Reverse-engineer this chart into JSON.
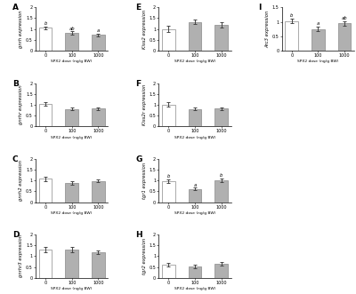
{
  "panels": [
    {
      "label": "A",
      "ylabel": "gnrh expression",
      "xlabels": [
        "0",
        "100",
        "1000"
      ],
      "values": [
        1.05,
        0.82,
        0.72
      ],
      "errors": [
        0.07,
        0.07,
        0.06
      ],
      "ylim": [
        0,
        2
      ],
      "yticks": [
        0,
        0.5,
        1.0,
        1.5,
        2.0
      ],
      "ytick_labels": [
        "0",
        "0.5",
        "1",
        "1.5",
        "2"
      ],
      "sig": [
        "b",
        "ab",
        "a"
      ],
      "colors": [
        "white",
        "#b0b0b0",
        "#b0b0b0"
      ]
    },
    {
      "label": "B",
      "ylabel": "gnrhr expression",
      "xlabels": [
        "0",
        "100",
        "1000"
      ],
      "values": [
        1.03,
        0.8,
        0.82
      ],
      "errors": [
        0.09,
        0.07,
        0.07
      ],
      "ylim": [
        0,
        2
      ],
      "yticks": [
        0,
        0.5,
        1.0,
        1.5,
        2.0
      ],
      "ytick_labels": [
        "0",
        "0.5",
        "1",
        "1.5",
        "2"
      ],
      "sig": [
        "",
        "",
        ""
      ],
      "colors": [
        "white",
        "#b0b0b0",
        "#b0b0b0"
      ]
    },
    {
      "label": "C",
      "ylabel": "gnrh2 expression",
      "xlabels": [
        "0",
        "100",
        "1000"
      ],
      "values": [
        1.07,
        0.88,
        0.98
      ],
      "errors": [
        0.1,
        0.07,
        0.07
      ],
      "ylim": [
        0,
        2
      ],
      "yticks": [
        0,
        0.5,
        1.0,
        1.5,
        2.0
      ],
      "ytick_labels": [
        "0",
        "0.5",
        "1",
        "1.5",
        "2"
      ],
      "sig": [
        "",
        "",
        ""
      ],
      "colors": [
        "white",
        "#b0b0b0",
        "#b0b0b0"
      ]
    },
    {
      "label": "D",
      "ylabel": "gnrhr3 expression",
      "xlabels": [
        "0",
        "100",
        "1000"
      ],
      "values": [
        1.3,
        1.32,
        1.18
      ],
      "errors": [
        0.13,
        0.12,
        0.1
      ],
      "ylim": [
        0,
        2
      ],
      "yticks": [
        0,
        0.5,
        1.0,
        1.5,
        2.0
      ],
      "ytick_labels": [
        "0",
        "0.5",
        "1",
        "1.5",
        "2"
      ],
      "sig": [
        "",
        "",
        ""
      ],
      "colors": [
        "white",
        "#b0b0b0",
        "#b0b0b0"
      ]
    },
    {
      "label": "E",
      "ylabel": "Kiss2 expression",
      "xlabels": [
        "0",
        "100",
        "1000"
      ],
      "values": [
        1.0,
        1.32,
        1.18
      ],
      "errors": [
        0.14,
        0.1,
        0.12
      ],
      "ylim": [
        0,
        2
      ],
      "yticks": [
        0,
        0.5,
        1.0,
        1.5,
        2.0
      ],
      "ytick_labels": [
        "0",
        "0.5",
        "1",
        "1.5",
        "2"
      ],
      "sig": [
        "",
        "",
        ""
      ],
      "colors": [
        "white",
        "#b0b0b0",
        "#b0b0b0"
      ]
    },
    {
      "label": "F",
      "ylabel": "Kiss2r expression",
      "xlabels": [
        "0",
        "100",
        "1000"
      ],
      "values": [
        1.0,
        0.8,
        0.82
      ],
      "errors": [
        0.1,
        0.07,
        0.07
      ],
      "ylim": [
        0,
        2
      ],
      "yticks": [
        0,
        0.5,
        1.0,
        1.5,
        2.0
      ],
      "ytick_labels": [
        "0",
        "0.5",
        "1",
        "1.5",
        "2"
      ],
      "sig": [
        "",
        "",
        ""
      ],
      "colors": [
        "white",
        "#b0b0b0",
        "#b0b0b0"
      ]
    },
    {
      "label": "G",
      "ylabel": "tgr1 expression",
      "xlabels": [
        "0",
        "100",
        "1000"
      ],
      "values": [
        0.98,
        0.6,
        1.02
      ],
      "errors": [
        0.08,
        0.06,
        0.08
      ],
      "ylim": [
        0,
        2
      ],
      "yticks": [
        0,
        0.5,
        1.0,
        1.5,
        2.0
      ],
      "ytick_labels": [
        "0",
        "0.5",
        "1",
        "1.5",
        "2"
      ],
      "sig": [
        "b",
        "a",
        "b"
      ],
      "colors": [
        "white",
        "#b0b0b0",
        "#b0b0b0"
      ]
    },
    {
      "label": "H",
      "ylabel": "tgr2 expression",
      "xlabels": [
        "0",
        "100",
        "1000"
      ],
      "values": [
        0.62,
        0.52,
        0.65
      ],
      "errors": [
        0.08,
        0.07,
        0.07
      ],
      "ylim": [
        0,
        2
      ],
      "yticks": [
        0,
        0.5,
        1.0,
        1.5,
        2.0
      ],
      "ytick_labels": [
        "0",
        "0.5",
        "1",
        "1.5",
        "2"
      ],
      "sig": [
        "",
        "",
        ""
      ],
      "colors": [
        "white",
        "#b0b0b0",
        "#b0b0b0"
      ]
    },
    {
      "label": "I",
      "ylabel": "Arc3 expression",
      "xlabels": [
        "0",
        "100",
        "1000"
      ],
      "values": [
        1.03,
        0.75,
        0.95
      ],
      "errors": [
        0.07,
        0.07,
        0.08
      ],
      "ylim": [
        0,
        1.5
      ],
      "yticks": [
        0,
        0.5,
        1.0,
        1.5
      ],
      "ytick_labels": [
        "0",
        "0.5",
        "1",
        "1.5"
      ],
      "sig": [
        "b",
        "a",
        "ab"
      ],
      "colors": [
        "white",
        "#b0b0b0",
        "#b0b0b0"
      ]
    }
  ],
  "xlabel": "SPX2 dose (ng/g BW)",
  "bar_width": 0.5,
  "edgecolor": "#888888",
  "capsize": 1.5,
  "background": "white"
}
